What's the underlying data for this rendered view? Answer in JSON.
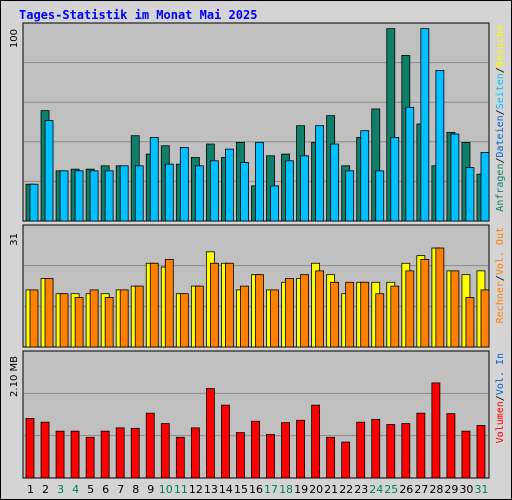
{
  "title": "Tages-Statistik im Monat Mai 2025",
  "colors": {
    "background": "#d4d4d4",
    "panel": "#c0c0c0",
    "grid": "#8a8a8a",
    "hits": "#0f7f6a",
    "files": "#0066cc",
    "pages": "#00c0ff",
    "visits": "#ffff00",
    "sites": "#ff8000",
    "kbytes": "#ff0000",
    "title": "#0000ff",
    "weekend_day": "#00805c",
    "weekday": "#000000"
  },
  "chart_data": [
    {
      "type": "bar",
      "panel": "top",
      "ytick_label": "100",
      "ylim": [
        0,
        116
      ],
      "legend_parts": [
        {
          "text": "Anfragen",
          "color": "#0f7f6a"
        },
        {
          "text": "/",
          "color": "#000000"
        },
        {
          "text": "Dateien",
          "color": "#0066cc"
        },
        {
          "text": "/",
          "color": "#000000"
        },
        {
          "text": "Seiten",
          "color": "#00c0ff"
        },
        {
          "text": "/",
          "color": "#000000"
        },
        {
          "text": "Besuche",
          "color": "#ffff00"
        }
      ],
      "series": [
        {
          "name": "Anfragen",
          "color": "#0f7f6a",
          "values": [
            22,
            66,
            30,
            31,
            31,
            33,
            33,
            51,
            40,
            45,
            34,
            38,
            46,
            38,
            47,
            21,
            39,
            40,
            57,
            47,
            63,
            33,
            50,
            67,
            115,
            99,
            58,
            33,
            53,
            47,
            28
          ]
        },
        {
          "name": "Seiten",
          "color": "#00c0ff",
          "values": [
            22,
            60,
            30,
            30,
            30,
            30,
            33,
            33,
            50,
            34,
            44,
            33,
            36,
            43,
            35,
            47,
            21,
            36,
            39,
            57,
            46,
            30,
            54,
            30,
            50,
            68,
            115,
            90,
            52,
            32,
            41
          ]
        }
      ]
    },
    {
      "type": "bar",
      "panel": "middle",
      "ytick_label": "31",
      "ylim": [
        0,
        31
      ],
      "legend_parts": [
        {
          "text": "Rechner",
          "color": "#ff8000"
        },
        {
          "text": "/",
          "color": "#000000"
        },
        {
          "text": "Vol. Out",
          "color": "#ff8000"
        }
      ],
      "series": [
        {
          "name": "Besuche",
          "color": "#ffff00",
          "values": [
            15,
            18,
            14,
            14,
            14,
            14,
            15,
            16,
            22,
            21,
            14,
            16,
            25,
            22,
            15,
            19,
            15,
            17,
            18,
            22,
            19,
            14,
            17,
            17,
            17,
            22,
            24,
            26,
            20,
            19,
            20
          ]
        },
        {
          "name": "Rechner",
          "color": "#ff8000",
          "values": [
            15,
            18,
            14,
            13,
            15,
            13,
            15,
            16,
            22,
            23,
            14,
            16,
            22,
            22,
            16,
            19,
            15,
            18,
            19,
            20,
            17,
            17,
            17,
            14,
            16,
            20,
            23,
            26,
            20,
            13,
            15
          ]
        }
      ]
    },
    {
      "type": "bar",
      "panel": "bottom",
      "ytick_label": "2.10 MB",
      "ylim": [
        0,
        2.6
      ],
      "legend_parts": [
        {
          "text": "Volumen",
          "color": "#ff0000"
        },
        {
          "text": "/",
          "color": "#000000"
        },
        {
          "text": "Vol. In",
          "color": "#0066cc"
        }
      ],
      "series": [
        {
          "name": "Volumen",
          "color": "#ff0000",
          "values": [
            1.26,
            1.18,
            0.99,
            0.99,
            0.86,
            0.99,
            1.06,
            1.05,
            1.37,
            1.15,
            0.86,
            1.06,
            1.89,
            1.54,
            0.96,
            1.2,
            0.92,
            1.17,
            1.22,
            1.54,
            0.86,
            0.76,
            1.18,
            1.24,
            1.13,
            1.15,
            1.37,
            2.01,
            1.36,
            0.99,
            1.11
          ]
        }
      ]
    }
  ],
  "days": [
    "1",
    "2",
    "3",
    "4",
    "5",
    "6",
    "7",
    "8",
    "9",
    "10",
    "11",
    "12",
    "13",
    "14",
    "15",
    "16",
    "17",
    "18",
    "19",
    "20",
    "21",
    "22",
    "23",
    "24",
    "25",
    "26",
    "27",
    "28",
    "29",
    "30",
    "31"
  ],
  "weekend_days": [
    3,
    4,
    10,
    11,
    17,
    18,
    24,
    25,
    31
  ]
}
